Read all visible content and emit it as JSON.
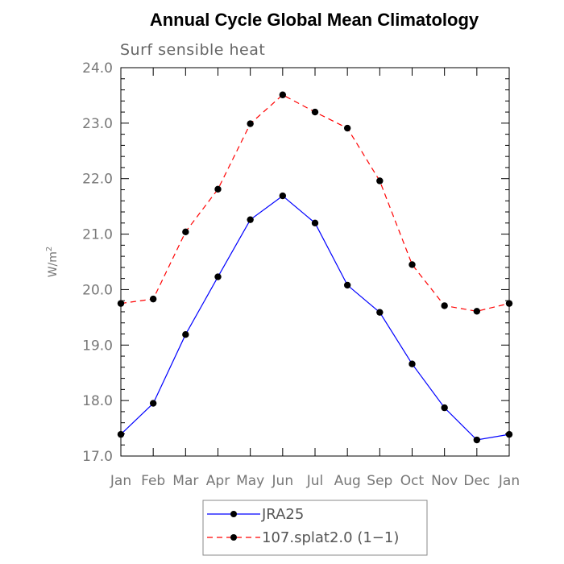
{
  "chart_data": {
    "type": "line",
    "title": "Annual Cycle Global Mean Climatology",
    "subtitle": "Surf sensible heat",
    "xlabel": "",
    "ylabel": "W/m",
    "ylabel_superscript": "2",
    "categories": [
      "Jan",
      "Feb",
      "Mar",
      "Apr",
      "May",
      "Jun",
      "Jul",
      "Aug",
      "Sep",
      "Oct",
      "Nov",
      "Dec",
      "Jan"
    ],
    "ylim": [
      17.0,
      24.0
    ],
    "yticks": [
      "17.0",
      "18.0",
      "19.0",
      "20.0",
      "21.0",
      "22.0",
      "23.0",
      "24.0"
    ],
    "series": [
      {
        "name": "JRA25",
        "color": "#0000ff",
        "dash": "solid",
        "values": [
          17.39,
          17.95,
          19.19,
          20.23,
          21.26,
          21.69,
          21.2,
          20.08,
          19.59,
          18.66,
          17.87,
          17.29,
          17.39
        ]
      },
      {
        "name": "107.splat2.0 (1−1)",
        "color": "#ff0000",
        "dash": "dashed",
        "values": [
          19.75,
          19.83,
          21.04,
          21.81,
          22.99,
          23.51,
          23.2,
          22.91,
          21.96,
          20.45,
          19.71,
          19.61,
          19.75
        ]
      }
    ]
  }
}
